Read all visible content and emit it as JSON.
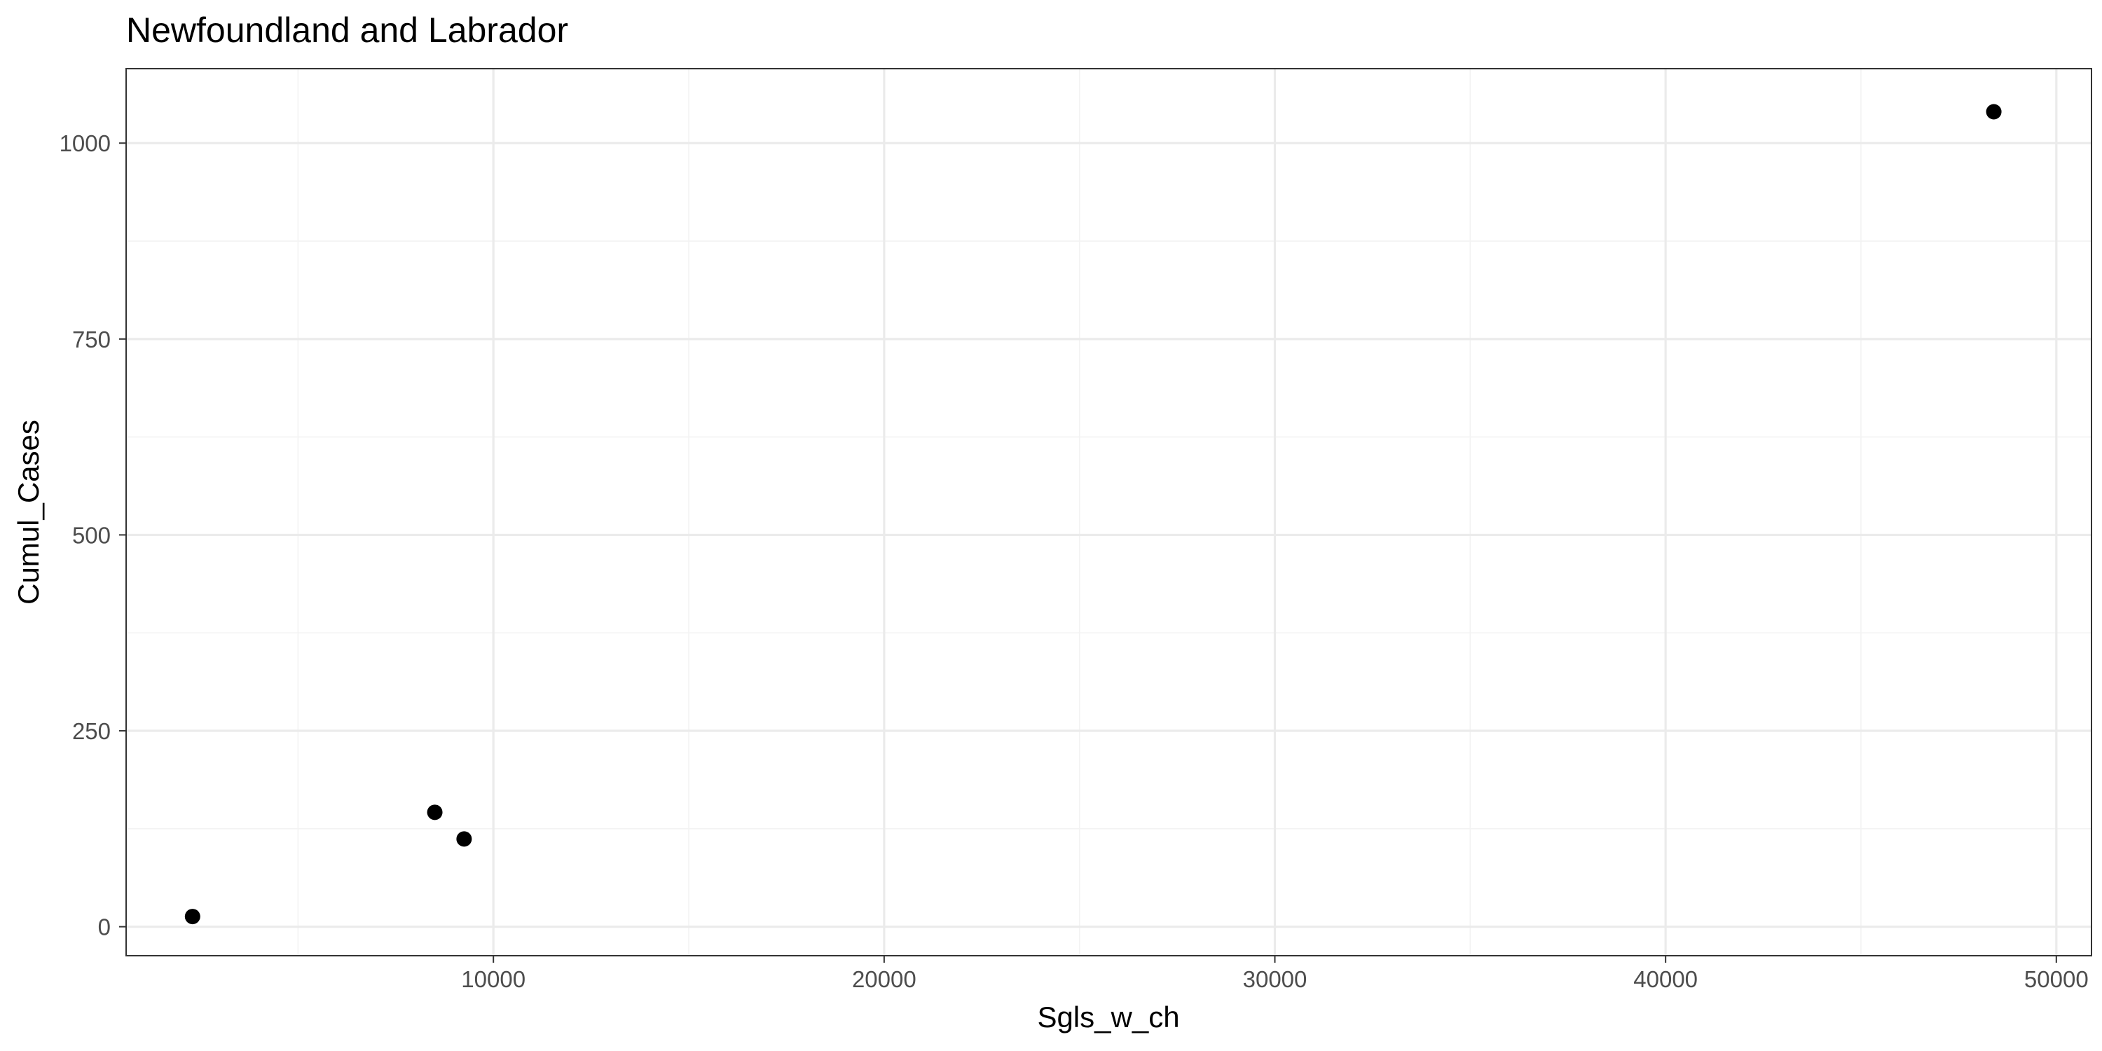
{
  "chart_data": {
    "type": "scatter",
    "title": "Newfoundland and Labrador",
    "xlabel": "Sgls_w_ch",
    "ylabel": "Cumul_Cases",
    "xlim": [
      600,
      50900
    ],
    "ylim": [
      -37,
      1095
    ],
    "x_major_ticks": [
      10000,
      20000,
      30000,
      40000,
      50000
    ],
    "x_minor_ticks": [
      5000,
      15000,
      25000,
      35000,
      45000
    ],
    "y_major_ticks": [
      0,
      250,
      500,
      750,
      1000
    ],
    "y_minor_ticks": [
      125,
      375,
      625,
      875
    ],
    "x_tick_labels": [
      "10000",
      "20000",
      "30000",
      "40000",
      "50000"
    ],
    "y_tick_labels": [
      "0",
      "250",
      "500",
      "750",
      "1000"
    ],
    "grid": true,
    "point_color": "#000000",
    "points": [
      {
        "x": 2300,
        "y": 13
      },
      {
        "x": 8500,
        "y": 146
      },
      {
        "x": 9250,
        "y": 112
      },
      {
        "x": 48400,
        "y": 1040
      }
    ]
  }
}
